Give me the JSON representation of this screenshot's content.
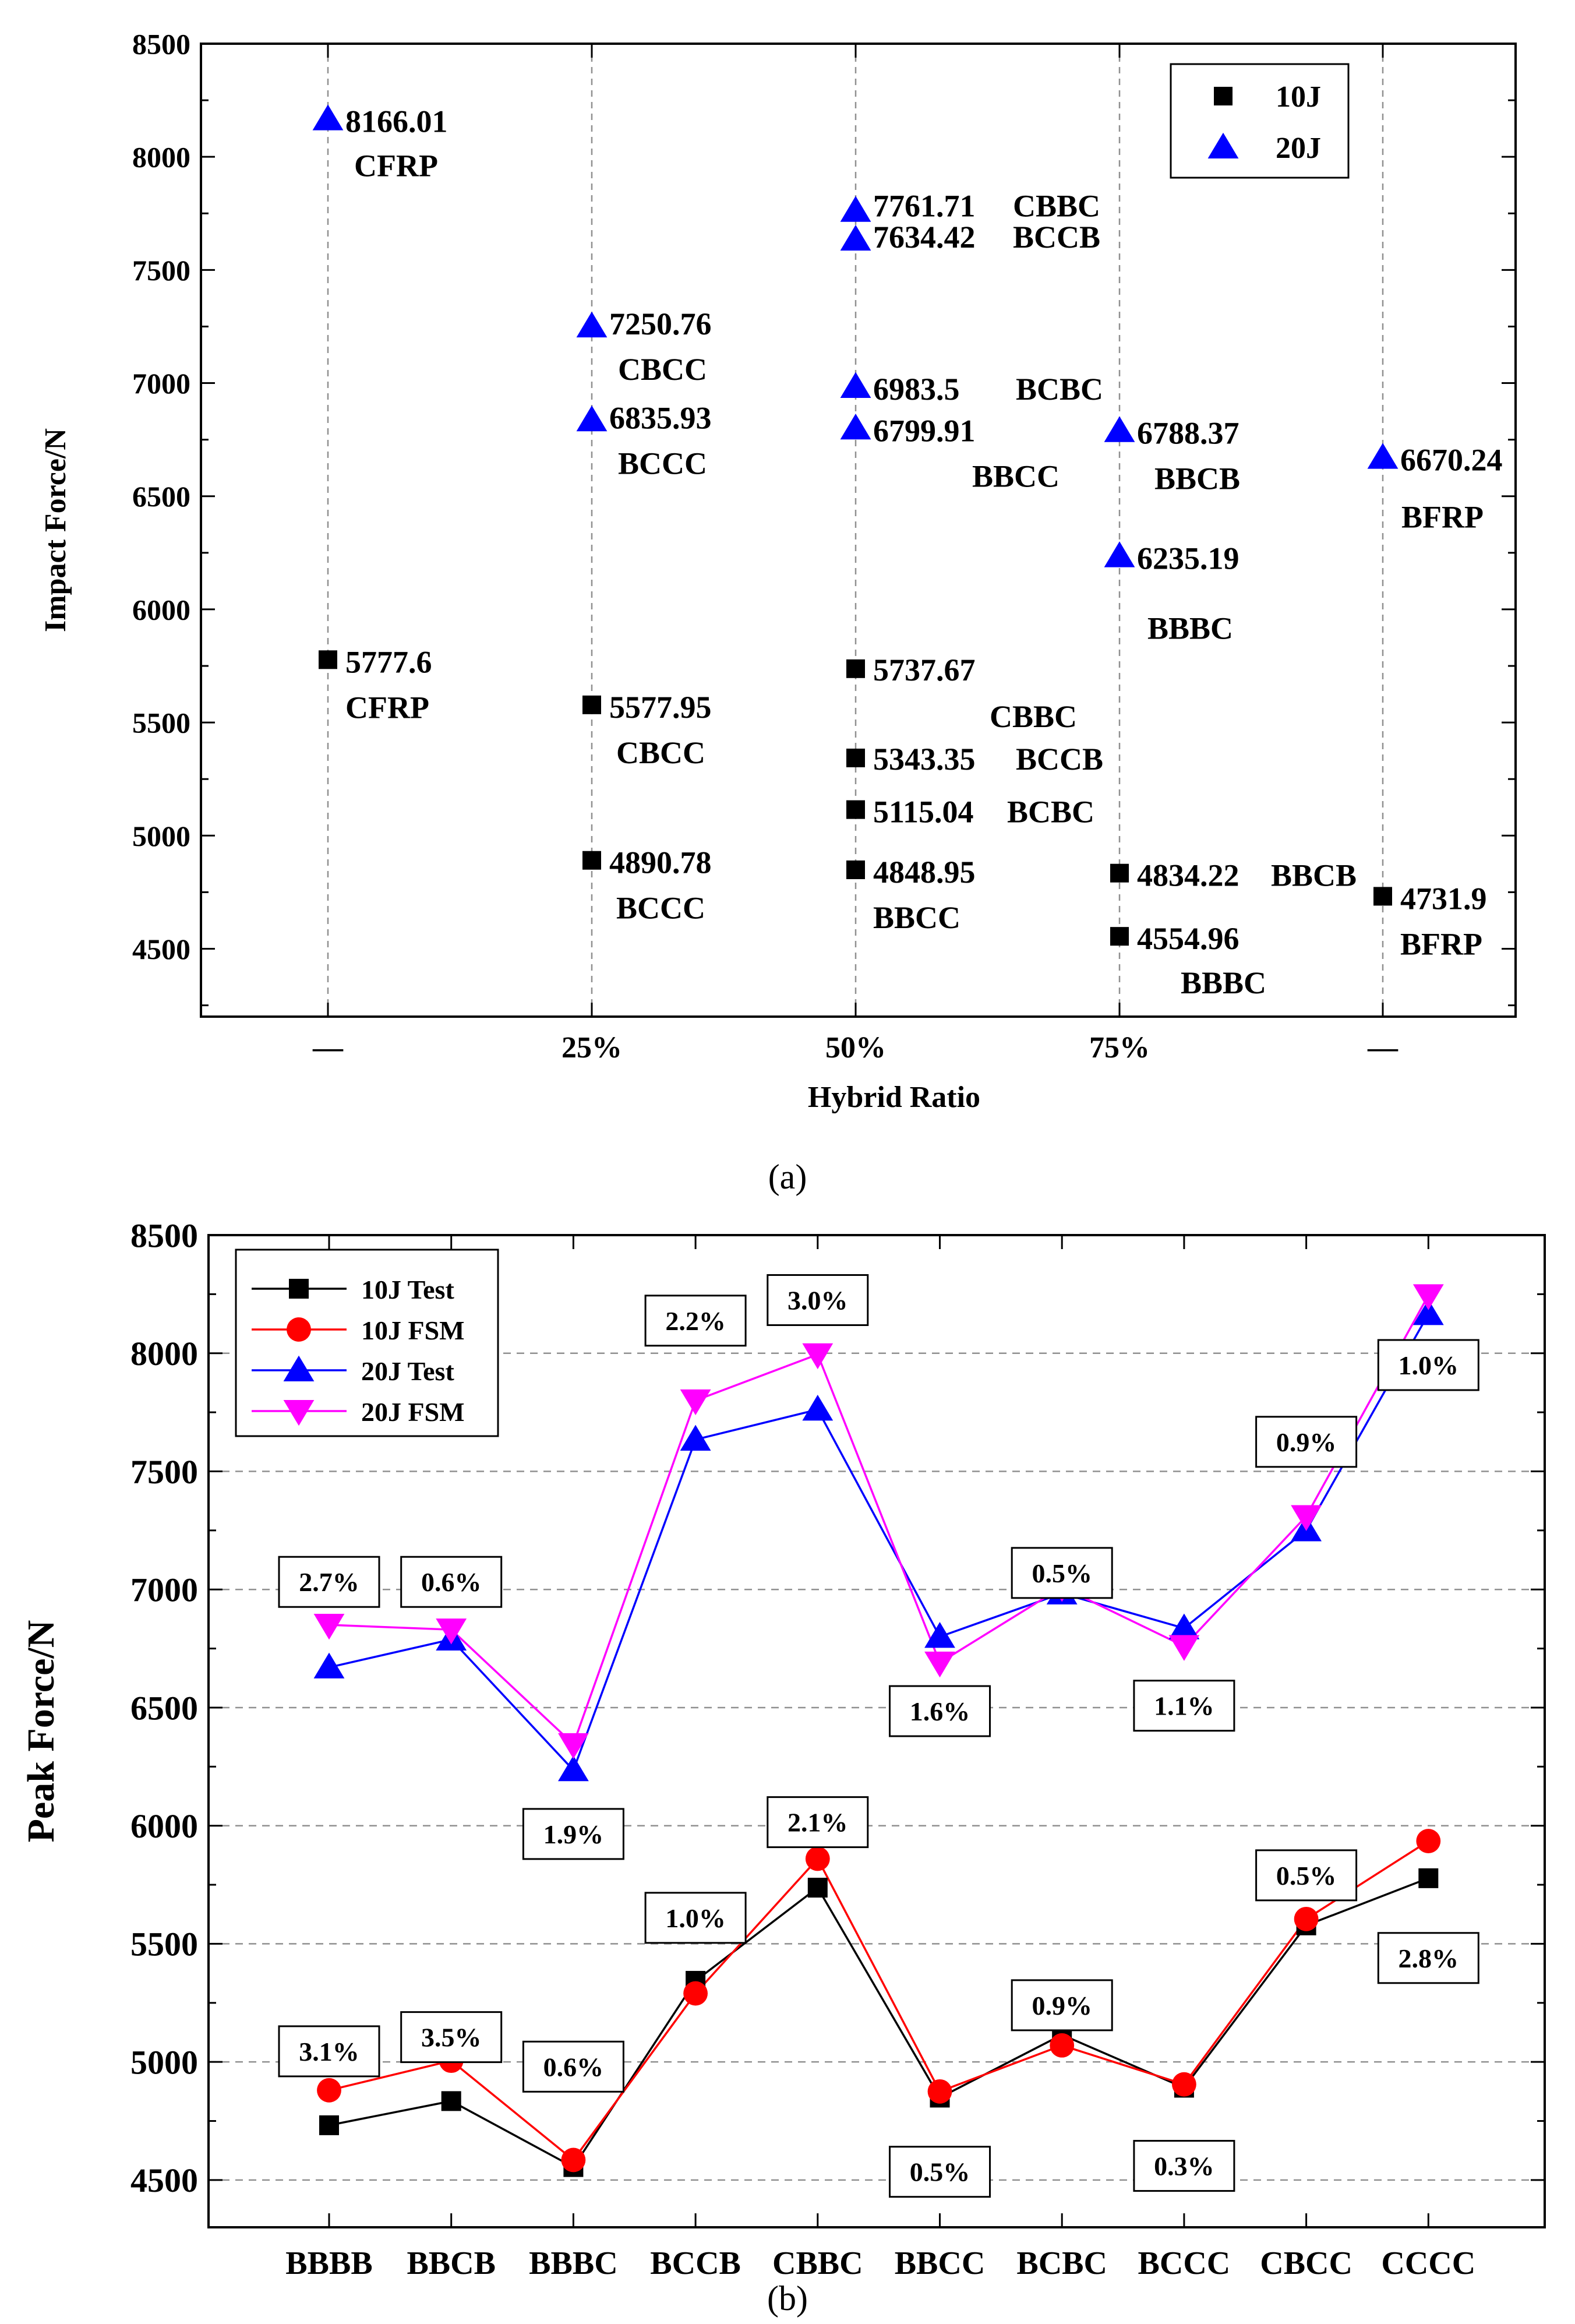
{
  "chart_data": [
    {
      "type": "scatter",
      "panel_label": "(a)",
      "xlabel": "Hybrid Ratio",
      "ylabel": "Impact Force/N",
      "ylim": [
        4200,
        8500
      ],
      "yticks": [
        4500,
        5000,
        5500,
        6000,
        6500,
        7000,
        7500,
        8000,
        8500
      ],
      "categories": [
        "—",
        "25%",
        "50%",
        "75%",
        "—"
      ],
      "grid": "vertical dashed",
      "legend": "top-right",
      "series": [
        {
          "name": "10J",
          "color": "#000000",
          "marker": "square",
          "points": [
            {
              "x": 0,
              "y": 5777.6,
              "value_label": "5777.6",
              "name": "CFRP"
            },
            {
              "x": 1,
              "y": 5577.95,
              "value_label": "5577.95",
              "name": "CBCC"
            },
            {
              "x": 1,
              "y": 4890.78,
              "value_label": "4890.78",
              "name": "BCCC"
            },
            {
              "x": 2,
              "y": 5737.67,
              "value_label": "5737.67",
              "name": "CBBC"
            },
            {
              "x": 2,
              "y": 5343.35,
              "value_label": "5343.35",
              "name": "BCCB"
            },
            {
              "x": 2,
              "y": 5115.04,
              "value_label": "5115.04",
              "name": "BCBC"
            },
            {
              "x": 2,
              "y": 4848.95,
              "value_label": "4848.95",
              "name": "BBCC"
            },
            {
              "x": 3,
              "y": 4834.22,
              "value_label": "4834.22",
              "name": "BBCB"
            },
            {
              "x": 3,
              "y": 4554.96,
              "value_label": "4554.96",
              "name": "BBBC"
            },
            {
              "x": 4,
              "y": 4731.9,
              "value_label": "4731.9",
              "name": "BFRP"
            }
          ]
        },
        {
          "name": "20J",
          "color": "#0000ff",
          "marker": "triangle-up",
          "points": [
            {
              "x": 0,
              "y": 8166.01,
              "value_label": "8166.01",
              "name": "CFRP"
            },
            {
              "x": 1,
              "y": 7250.76,
              "value_label": "7250.76",
              "name": "CBCC"
            },
            {
              "x": 1,
              "y": 6835.93,
              "value_label": "6835.93",
              "name": "BCCC"
            },
            {
              "x": 2,
              "y": 7761.71,
              "value_label": "7761.71",
              "name": "CBBC"
            },
            {
              "x": 2,
              "y": 7634.42,
              "value_label": "7634.42",
              "name": "BCCB"
            },
            {
              "x": 2,
              "y": 6983.5,
              "value_label": "6983.5",
              "name": "BCBC"
            },
            {
              "x": 2,
              "y": 6799.91,
              "value_label": "6799.91",
              "name": "BBCC"
            },
            {
              "x": 3,
              "y": 6788.37,
              "value_label": "6788.37",
              "name": "BBCB"
            },
            {
              "x": 3,
              "y": 6235.19,
              "value_label": "6235.19",
              "name": "BBBC"
            },
            {
              "x": 4,
              "y": 6670.24,
              "value_label": "6670.24",
              "name": "BFRP"
            }
          ]
        }
      ]
    },
    {
      "type": "line",
      "panel_label": "(b)",
      "xlabel": "",
      "ylabel": "Peak Force/N",
      "ylim": [
        4300,
        8500
      ],
      "yticks": [
        4500,
        5000,
        5500,
        6000,
        6500,
        7000,
        7500,
        8000,
        8500
      ],
      "categories": [
        "BBBB",
        "BBCB",
        "BBBC",
        "BCCB",
        "CBBC",
        "BBCC",
        "BCBC",
        "BCCC",
        "CBCC",
        "CCCC"
      ],
      "grid": "horizontal dashed",
      "legend": "top-left",
      "series": [
        {
          "name": "10J Test",
          "color": "#000000",
          "marker": "square",
          "values": [
            4731.9,
            4834.22,
            4554.96,
            5343.35,
            5737.67,
            4848.95,
            5115.04,
            4890.78,
            5577.95,
            5777.6
          ]
        },
        {
          "name": "10J FSM",
          "color": "#ff0000",
          "marker": "circle",
          "values": [
            4880,
            5005,
            4585,
            5290,
            5860,
            4875,
            5070,
            4905,
            5605,
            5935
          ]
        },
        {
          "name": "20J Test",
          "color": "#0000ff",
          "marker": "triangle-up",
          "values": [
            6670.24,
            6788.37,
            6235.19,
            7634.42,
            7761.71,
            6799.91,
            6983.5,
            6835.93,
            7250.76,
            8166.01
          ]
        },
        {
          "name": "20J FSM",
          "color": "#ff00ff",
          "marker": "triangle-down",
          "values": [
            6850,
            6830,
            6345,
            7800,
            7995,
            6690,
            7010,
            6760,
            7310,
            8245
          ]
        }
      ],
      "annotations": [
        {
          "text": "2.7%",
          "x": 0,
          "y": 7032
        },
        {
          "text": "0.6%",
          "x": 1,
          "y": 7032
        },
        {
          "text": "1.9%",
          "x": 2,
          "y": 5965
        },
        {
          "text": "2.2%",
          "x": 3,
          "y": 8138
        },
        {
          "text": "3.0%",
          "x": 4,
          "y": 8225
        },
        {
          "text": "1.6%",
          "x": 5,
          "y": 6485
        },
        {
          "text": "0.5%",
          "x": 6,
          "y": 7070
        },
        {
          "text": "1.1%",
          "x": 7,
          "y": 6508
        },
        {
          "text": "0.9%",
          "x": 8,
          "y": 7625
        },
        {
          "text": "1.0%",
          "x": 9,
          "y": 7950
        },
        {
          "text": "3.1%",
          "x": 0,
          "y": 5045
        },
        {
          "text": "3.5%",
          "x": 1,
          "y": 5105
        },
        {
          "text": "0.6%",
          "x": 2,
          "y": 4980
        },
        {
          "text": "1.0%",
          "x": 3,
          "y": 5610
        },
        {
          "text": "2.1%",
          "x": 4,
          "y": 6015
        },
        {
          "text": "0.5%",
          "x": 5,
          "y": 4535
        },
        {
          "text": "0.9%",
          "x": 6,
          "y": 5240
        },
        {
          "text": "0.3%",
          "x": 7,
          "y": 4560
        },
        {
          "text": "0.5%",
          "x": 8,
          "y": 5790
        },
        {
          "text": "2.8%",
          "x": 9,
          "y": 5440
        }
      ]
    }
  ]
}
